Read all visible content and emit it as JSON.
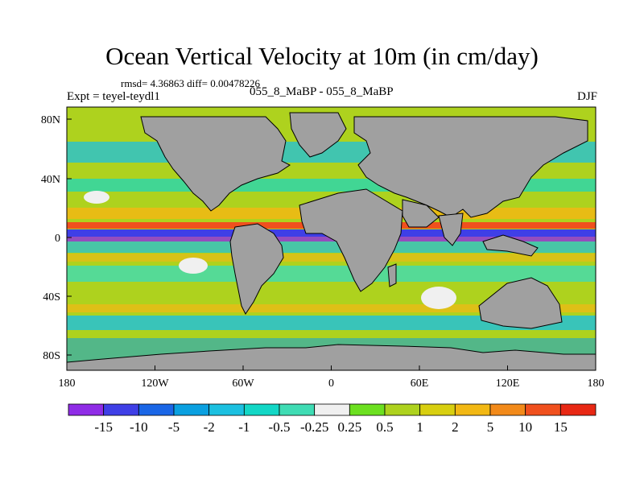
{
  "map": {
    "title": "Ocean Vertical Velocity at 10m (in cm/day)",
    "stats_line": "rmsd= 4.36863 diff= 0.00478226",
    "left_label": "Expt = teyel-teydl1",
    "center_label": "055_8_MaBP - 055_8_MaBP",
    "right_label": "DJF",
    "land_color": "#a0a0a0",
    "x_ticks": [
      "180",
      "120W",
      "60W",
      "0",
      "60E",
      "120E",
      "180"
    ],
    "y_ticks": [
      "80N",
      "40N",
      "0",
      "40S",
      "80S"
    ]
  },
  "colorbar": {
    "labels": [
      "-15",
      "-10",
      "-5",
      "-2",
      "-1",
      "-0.5",
      "-0.25",
      "0.25",
      "0.5",
      "1",
      "2",
      "5",
      "10",
      "15"
    ],
    "colors": [
      "#8f2ce6",
      "#3f3fe6",
      "#1a66e6",
      "#0aa0e0",
      "#1cc0e0",
      "#13d7c6",
      "#3fdcb4",
      "#f0f0f0",
      "#6ce020",
      "#aed21e",
      "#d8cf10",
      "#f2b814",
      "#f28a1a",
      "#f0501e",
      "#e82814"
    ]
  }
}
